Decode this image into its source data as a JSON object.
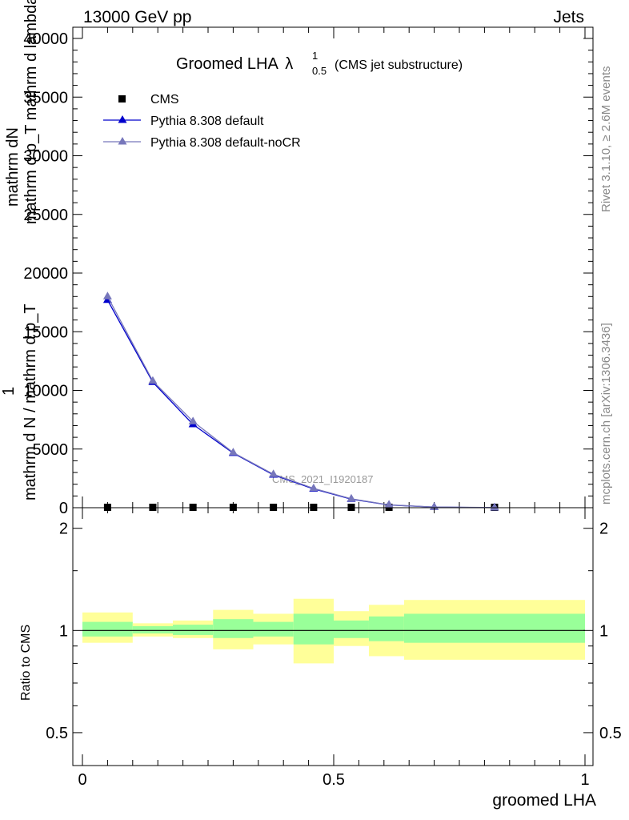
{
  "header": {
    "left": "13000 GeV pp",
    "right": "Jets"
  },
  "side_labels": {
    "rivet": "Rivet 3.1.10, ≥ 2.6M events",
    "mcplots": "mcplots.cern.ch [arXiv:1306.3436]"
  },
  "chart_data": [
    {
      "type": "line",
      "title_main": "Groomed LHA",
      "title_lambda": "λ",
      "title_sub": "0.5",
      "title_sup": "1",
      "title_note": "(CMS jet substructure)",
      "ylabel_lines": [
        "mathrm dN",
        "mathrm d p_T mathrm d lambda",
        "1",
        "mathrm d N / mathrm d p_T"
      ],
      "ylim": [
        0,
        40000
      ],
      "xlim": [
        0,
        1
      ],
      "yticks": [
        0,
        5000,
        10000,
        15000,
        20000,
        25000,
        30000,
        35000,
        40000
      ],
      "ytick_labels": [
        "0",
        "5000",
        "10000",
        "15000",
        "20000",
        "25000",
        "30000",
        "35000",
        "40000"
      ],
      "watermark": "CMS_2021_I1920187",
      "legend_position": "top-left",
      "series": [
        {
          "name": "CMS",
          "marker": "square",
          "color": "#000000",
          "x": [
            0.05,
            0.14,
            0.22,
            0.3,
            0.38,
            0.46,
            0.535,
            0.61,
            0.82
          ],
          "y": [
            5,
            5,
            5,
            5,
            5,
            5,
            5,
            5,
            5
          ]
        },
        {
          "name": "Pythia 8.308 default",
          "marker": "triangle",
          "color": "#0000cc",
          "x": [
            0.05,
            0.14,
            0.22,
            0.3,
            0.38,
            0.46,
            0.535,
            0.61,
            0.7,
            0.82
          ],
          "y": [
            17700,
            10700,
            7100,
            4650,
            2800,
            1600,
            730,
            230,
            50,
            10
          ]
        },
        {
          "name": "Pythia 8.308 default-noCR",
          "marker": "triangle",
          "color": "#7777bb",
          "x": [
            0.05,
            0.14,
            0.22,
            0.3,
            0.38,
            0.46,
            0.535,
            0.61,
            0.7,
            0.82
          ],
          "y": [
            18000,
            10800,
            7350,
            4700,
            2850,
            1650,
            760,
            240,
            55,
            12
          ]
        }
      ]
    },
    {
      "type": "area",
      "ylabel": "Ratio to CMS",
      "xlabel": "groomed LHA",
      "ylim": [
        0.4,
        2.3
      ],
      "log_y": true,
      "xlim": [
        0,
        1
      ],
      "yticks": [
        0.5,
        1,
        2
      ],
      "ytick_labels": [
        "0.5",
        "1",
        "2"
      ],
      "xticks": [
        0,
        0.5,
        1
      ],
      "xtick_labels": [
        "0",
        "0.5",
        "1"
      ],
      "reference": 1,
      "band_colors": {
        "outer": "#ffff99",
        "inner": "#99ff99"
      },
      "bins": [
        {
          "x0": 0.0,
          "x1": 0.1,
          "inner": [
            0.96,
            1.06
          ],
          "outer": [
            0.92,
            1.13
          ]
        },
        {
          "x0": 0.1,
          "x1": 0.18,
          "inner": [
            0.98,
            1.03
          ],
          "outer": [
            0.96,
            1.05
          ]
        },
        {
          "x0": 0.18,
          "x1": 0.26,
          "inner": [
            0.97,
            1.04
          ],
          "outer": [
            0.95,
            1.07
          ]
        },
        {
          "x0": 0.26,
          "x1": 0.34,
          "inner": [
            0.95,
            1.08
          ],
          "outer": [
            0.88,
            1.15
          ]
        },
        {
          "x0": 0.34,
          "x1": 0.42,
          "inner": [
            0.96,
            1.06
          ],
          "outer": [
            0.91,
            1.12
          ]
        },
        {
          "x0": 0.42,
          "x1": 0.5,
          "inner": [
            0.91,
            1.12
          ],
          "outer": [
            0.8,
            1.24
          ]
        },
        {
          "x0": 0.5,
          "x1": 0.57,
          "inner": [
            0.95,
            1.07
          ],
          "outer": [
            0.9,
            1.14
          ]
        },
        {
          "x0": 0.57,
          "x1": 0.64,
          "inner": [
            0.93,
            1.1
          ],
          "outer": [
            0.84,
            1.19
          ]
        },
        {
          "x0": 0.64,
          "x1": 1.0,
          "inner": [
            0.92,
            1.12
          ],
          "outer": [
            0.82,
            1.23
          ]
        }
      ]
    }
  ]
}
